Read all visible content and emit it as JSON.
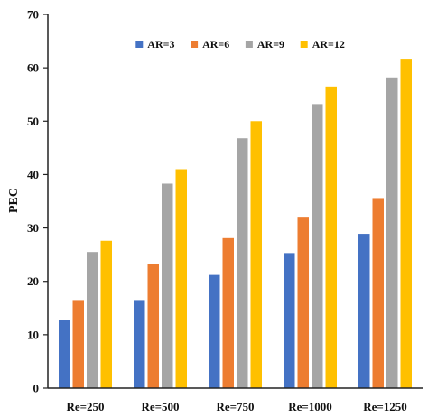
{
  "chart_data": {
    "type": "bar",
    "title": "",
    "xlabel": "",
    "ylabel": "PEC",
    "ylim": [
      0,
      70
    ],
    "yticks": [
      0,
      10,
      20,
      30,
      40,
      50,
      60,
      70
    ],
    "grid": false,
    "legend_position": "top-center",
    "categories": [
      "Re=250",
      "Re=500",
      "Re=750",
      "Re=1000",
      "Re=1250"
    ],
    "series": [
      {
        "name": "AR=3",
        "color": "#4472C4",
        "values": [
          12.7,
          16.5,
          21.2,
          25.3,
          28.9
        ]
      },
      {
        "name": "AR=6",
        "color": "#ED7D31",
        "values": [
          16.5,
          23.2,
          28.1,
          32.1,
          35.6
        ]
      },
      {
        "name": "AR=9",
        "color": "#A5A5A5",
        "values": [
          25.5,
          38.3,
          46.8,
          53.2,
          58.2
        ]
      },
      {
        "name": "AR=12",
        "color": "#FFC000",
        "values": [
          27.6,
          41.0,
          50.0,
          56.5,
          61.7
        ]
      }
    ]
  }
}
